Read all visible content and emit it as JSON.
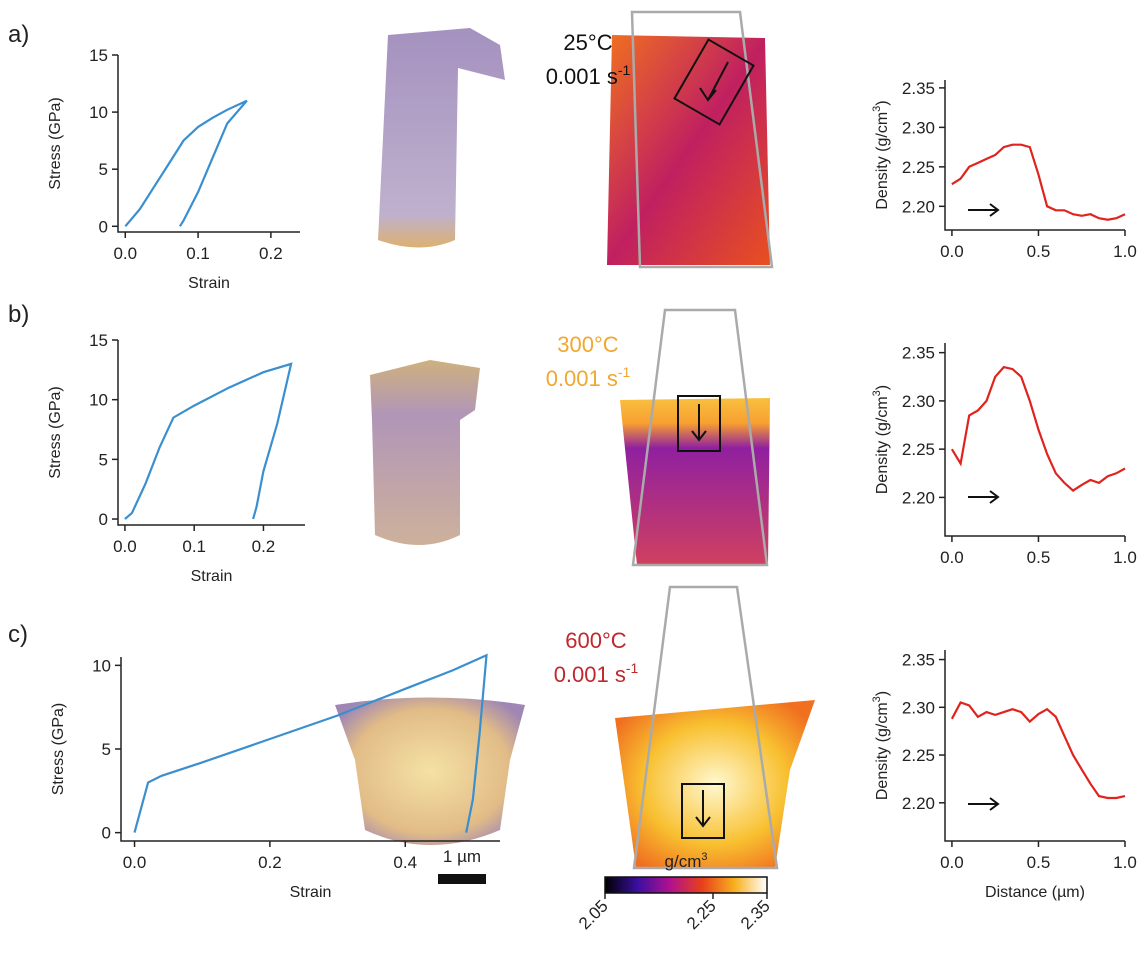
{
  "panel_labels": [
    "a)",
    "b)",
    "c)"
  ],
  "conditions": [
    {
      "temperature": "25°C",
      "rate": "0.001 s",
      "exponent": "-1",
      "color": "#111111"
    },
    {
      "temperature": "300°C",
      "rate": "0.001 s",
      "exponent": "-1",
      "color": "#f0a830"
    },
    {
      "temperature": "600°C",
      "rate": "0.001 s",
      "exponent": "-1",
      "color": "#c0282d"
    }
  ],
  "scale_bar": "1 µm",
  "chart_data": [
    {
      "type": "line",
      "xlabel": "Strain",
      "ylabel": "Stress (GPa)",
      "x": [
        0,
        0.02,
        0.04,
        0.06,
        0.08,
        0.1,
        0.12,
        0.14,
        0.167,
        0.14,
        0.12,
        0.1,
        0.08,
        0.075
      ],
      "series": [
        {
          "color": "#3a8fd0",
          "values": [
            0,
            1.5,
            3.5,
            5.5,
            7.5,
            8.7,
            9.5,
            10.2,
            11,
            9,
            6,
            3,
            0.5,
            0
          ]
        }
      ],
      "xlim": [
        -0.01,
        0.24
      ],
      "xticks": [
        {
          "value": 0,
          "label": "0.0"
        },
        0.1,
        0.2
      ],
      "ylim": [
        -0.5,
        15
      ],
      "yticks": [
        0,
        5,
        10,
        15
      ]
    },
    {
      "type": "line",
      "xlabel": "Strain",
      "ylabel": "Stress (GPa)",
      "x": [
        0,
        0.01,
        0.03,
        0.05,
        0.07,
        0.1,
        0.15,
        0.2,
        0.24,
        0.22,
        0.2,
        0.19,
        0.185
      ],
      "series": [
        {
          "color": "#3a8fd0",
          "values": [
            0,
            0.5,
            3,
            6,
            8.5,
            9.5,
            11,
            12.3,
            13,
            8,
            4,
            1,
            0
          ]
        }
      ],
      "xlim": [
        -0.01,
        0.26
      ],
      "xticks": [
        {
          "value": 0,
          "label": "0.0"
        },
        0.1,
        0.2
      ],
      "ylim": [
        -0.5,
        15
      ],
      "yticks": [
        0,
        5,
        10,
        15
      ]
    },
    {
      "type": "line",
      "xlabel": "Strain",
      "ylabel": "Stress (GPa)",
      "x": [
        0,
        0.02,
        0.04,
        0.1,
        0.2,
        0.3,
        0.4,
        0.47,
        0.52,
        0.51,
        0.5,
        0.49
      ],
      "series": [
        {
          "color": "#3a8fd0",
          "values": [
            0,
            3,
            3.4,
            4.2,
            5.6,
            7,
            8.6,
            9.7,
            10.6,
            6,
            2,
            0
          ]
        }
      ],
      "xlim": [
        -0.02,
        0.54
      ],
      "xticks": [
        {
          "value": 0,
          "label": "0.0"
        },
        0.2,
        0.4
      ],
      "ylim": [
        -0.5,
        10.5
      ],
      "yticks": [
        0,
        5,
        10
      ]
    },
    {
      "type": "line",
      "ylabel": "Density (g/cm",
      "ylabel_sup": "3",
      "ylabel_end": ")",
      "x": [
        0,
        0.05,
        0.1,
        0.15,
        0.2,
        0.25,
        0.3,
        0.35,
        0.4,
        0.45,
        0.5,
        0.55,
        0.6,
        0.65,
        0.7,
        0.75,
        0.8,
        0.85,
        0.9,
        0.95,
        1.0
      ],
      "series": [
        {
          "color": "#e0231d",
          "values": [
            2.228,
            2.235,
            2.25,
            2.255,
            2.26,
            2.265,
            2.275,
            2.278,
            2.278,
            2.275,
            2.24,
            2.2,
            2.195,
            2.195,
            2.19,
            2.188,
            2.19,
            2.185,
            2.183,
            2.185,
            2.19
          ]
        }
      ],
      "xlim": [
        -0.04,
        1.0
      ],
      "xticks": [
        {
          "value": 0,
          "label": "0.0"
        },
        0.5,
        {
          "value": 1,
          "label": "1.0"
        }
      ],
      "ylim": [
        2.17,
        2.36
      ],
      "yticks": [
        {
          "value": 2.2,
          "label": "2.20"
        },
        2.25,
        {
          "value": 2.3,
          "label": "2.30"
        },
        2.35
      ]
    },
    {
      "type": "line",
      "ylabel": "Density (g/cm",
      "ylabel_sup": "3",
      "ylabel_end": ")",
      "x": [
        0,
        0.05,
        0.1,
        0.15,
        0.2,
        0.25,
        0.3,
        0.35,
        0.4,
        0.45,
        0.5,
        0.55,
        0.6,
        0.65,
        0.7,
        0.75,
        0.8,
        0.85,
        0.9,
        0.95,
        1.0
      ],
      "series": [
        {
          "color": "#e0231d",
          "values": [
            2.25,
            2.235,
            2.285,
            2.29,
            2.3,
            2.325,
            2.335,
            2.333,
            2.325,
            2.3,
            2.27,
            2.245,
            2.225,
            2.215,
            2.207,
            2.213,
            2.218,
            2.215,
            2.222,
            2.225,
            2.23
          ]
        }
      ],
      "xlim": [
        -0.04,
        1.0
      ],
      "xticks": [
        {
          "value": 0,
          "label": "0.0"
        },
        0.5,
        {
          "value": 1,
          "label": "1.0"
        }
      ],
      "ylim": [
        2.16,
        2.36
      ],
      "yticks": [
        {
          "value": 2.2,
          "label": "2.20"
        },
        2.25,
        {
          "value": 2.3,
          "label": "2.30"
        },
        2.35
      ]
    },
    {
      "type": "line",
      "xlabel": "Distance (µm)",
      "ylabel": "Density (g/cm",
      "ylabel_sup": "3",
      "ylabel_end": ")",
      "x": [
        0,
        0.05,
        0.1,
        0.15,
        0.2,
        0.25,
        0.3,
        0.35,
        0.4,
        0.45,
        0.5,
        0.55,
        0.6,
        0.65,
        0.7,
        0.75,
        0.8,
        0.85,
        0.9,
        0.95,
        1.0
      ],
      "series": [
        {
          "color": "#e0231d",
          "values": [
            2.288,
            2.305,
            2.302,
            2.29,
            2.295,
            2.292,
            2.295,
            2.298,
            2.295,
            2.285,
            2.293,
            2.298,
            2.29,
            2.27,
            2.25,
            2.235,
            2.22,
            2.207,
            2.205,
            2.205,
            2.207
          ]
        }
      ],
      "xlim": [
        -0.04,
        1.0
      ],
      "xticks": [
        {
          "value": 0,
          "label": "0.0"
        },
        0.5,
        {
          "value": 1,
          "label": "1.0"
        }
      ],
      "ylim": [
        2.16,
        2.36
      ],
      "yticks": [
        {
          "value": 2.2,
          "label": "2.20"
        },
        2.25,
        {
          "value": 2.3,
          "label": "2.30"
        },
        2.35
      ]
    },
    {
      "type": "colorbar",
      "label": "g/cm",
      "label_sup": "3",
      "lim": [
        2.05,
        2.35
      ],
      "ticks": [
        2.05,
        2.25,
        2.35
      ]
    }
  ]
}
